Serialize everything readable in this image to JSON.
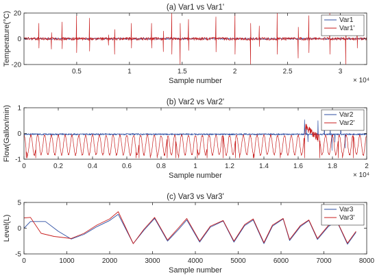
{
  "colors": {
    "series_primary": "#2b4da2",
    "series_prime": "#c81d1d",
    "axis": "#262626",
    "background": "#ffffff"
  },
  "chart_data": [
    {
      "type": "line",
      "title": "(a) Var1 vs Var1'",
      "xlabel": "Sample number",
      "ylabel": "Temperature(°C)",
      "xlim": [
        0,
        32500
      ],
      "ylim": [
        -20,
        20
      ],
      "x_multiplier": "× 10⁴",
      "xticks": [
        5000,
        10000,
        15000,
        20000,
        25000,
        30000
      ],
      "xtick_labels": [
        "0.5",
        "1",
        "1.5",
        "2",
        "2.5",
        "3"
      ],
      "yticks": [
        -20,
        0,
        20
      ],
      "ytick_labels": [
        "-20",
        "0",
        "20"
      ],
      "legend": "top-right",
      "series": [
        {
          "name": "Var1",
          "color": "#2b4da2",
          "baseline": 0,
          "noise": 0.6,
          "spikes": []
        },
        {
          "name": "Var1'",
          "color": "#c81d1d",
          "baseline": 0,
          "noise": 1.2,
          "spikes": [
            [
              1400,
              12
            ],
            [
              2600,
              -8
            ],
            [
              3600,
              13
            ],
            [
              5000,
              18
            ],
            [
              6200,
              16
            ],
            [
              8000,
              -5
            ],
            [
              8600,
              -12
            ],
            [
              10200,
              12
            ],
            [
              12100,
              12
            ],
            [
              13200,
              -10
            ],
            [
              14000,
              20
            ],
            [
              14800,
              -20
            ],
            [
              15600,
              15
            ],
            [
              18200,
              17
            ],
            [
              20000,
              20
            ],
            [
              21500,
              -20
            ],
            [
              22300,
              10
            ],
            [
              24000,
              20
            ],
            [
              26000,
              -15
            ],
            [
              27000,
              18
            ],
            [
              29000,
              20
            ],
            [
              30500,
              -20
            ],
            [
              31600,
              12
            ]
          ]
        }
      ]
    },
    {
      "type": "line",
      "title": "(b) Var2 vs Var2'",
      "xlabel": "Sample number",
      "ylabel": "Flow(Gallon/min)",
      "xlim": [
        0,
        20000
      ],
      "ylim": [
        -1,
        1
      ],
      "x_multiplier": "× 10⁴",
      "xticks": [
        0,
        2000,
        4000,
        6000,
        8000,
        10000,
        12000,
        14000,
        16000,
        18000,
        20000
      ],
      "xtick_labels": [
        "0",
        "0.2",
        "0.4",
        "0.6",
        "0.8",
        "1",
        "1.2",
        "1.4",
        "1.6",
        "1.8",
        "2"
      ],
      "yticks": [
        -1,
        0,
        1
      ],
      "ytick_labels": [
        "-1",
        "0",
        "1"
      ],
      "legend": "top-right",
      "series": [
        {
          "name": "Var2",
          "color": "#2b4da2",
          "baseline": -0.03,
          "noise": 0.03
        },
        {
          "name": "Var2'",
          "color": "#c81d1d",
          "baseline": -0.45,
          "amplitude": 0.38,
          "period": 400
        }
      ]
    },
    {
      "type": "line",
      "title": "(c) Var3 vs Var3'",
      "xlabel": "Sample number",
      "ylabel": "Level(L)",
      "xlim": [
        0,
        8000
      ],
      "ylim": [
        -5,
        5
      ],
      "xticks": [
        0,
        1000,
        2000,
        3000,
        4000,
        5000,
        6000,
        7000,
        8000
      ],
      "xtick_labels": [
        "0",
        "1000",
        "2000",
        "3000",
        "4000",
        "5000",
        "6000",
        "7000",
        "8000"
      ],
      "yticks": [
        -5,
        0,
        5
      ],
      "ytick_labels": [
        "-5",
        "0",
        "5"
      ],
      "legend": "top-right",
      "series": [
        {
          "name": "Var3",
          "color": "#2b4da2",
          "x": [
            0,
            150,
            500,
            800,
            1100,
            1400,
            1700,
            2000,
            2200,
            2550,
            2800,
            3050,
            3350,
            3600,
            3800,
            4100,
            4350,
            4650,
            4900,
            5150,
            5350,
            5600,
            5800,
            6050,
            6200,
            6450,
            6650,
            6850,
            7100,
            7300,
            7550,
            7750
          ],
          "y": [
            0,
            1.3,
            1.3,
            -0.6,
            -2.1,
            -1.2,
            0.3,
            1.5,
            2.7,
            -3.0,
            -0.4,
            1.9,
            -2.5,
            -0.3,
            1.6,
            -2.7,
            0.2,
            1.4,
            -2.7,
            0.5,
            1.6,
            -3.0,
            0.4,
            1.8,
            -2.4,
            0.3,
            1.5,
            -2.2,
            0.3,
            1.4,
            -3.1,
            -0.8
          ]
        },
        {
          "name": "Var3'",
          "color": "#c81d1d",
          "x": [
            0,
            150,
            400,
            700,
            1100,
            1400,
            1700,
            2000,
            2200,
            2550,
            2800,
            3050,
            3350,
            3600,
            3800,
            4100,
            4350,
            4650,
            4900,
            5150,
            5350,
            5600,
            5800,
            6050,
            6200,
            6450,
            6650,
            6850,
            7100,
            7300,
            7550,
            7750
          ],
          "y": [
            2.0,
            2.1,
            -1.0,
            -1.6,
            -2.0,
            -1.0,
            0.6,
            1.8,
            3.2,
            -3.0,
            -0.2,
            2.1,
            -2.3,
            0.0,
            1.9,
            -2.5,
            0.4,
            1.5,
            -2.5,
            0.7,
            1.8,
            -2.8,
            0.6,
            1.9,
            -2.2,
            0.5,
            1.6,
            -2.0,
            0.5,
            1.5,
            -2.9,
            -0.6
          ]
        }
      ]
    }
  ]
}
